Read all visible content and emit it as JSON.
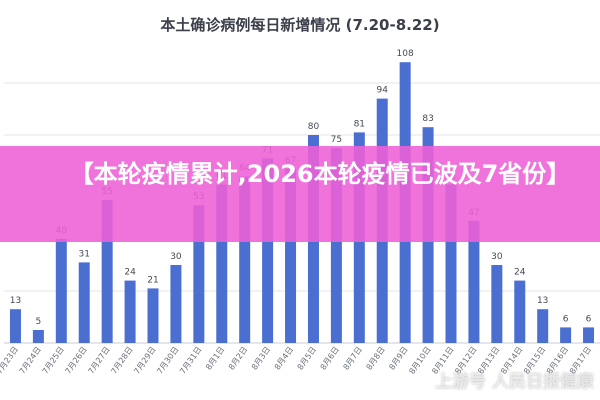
{
  "chart_data": {
    "type": "bar",
    "title": "本土确诊病例每日新增情况 (7.20-8.22)",
    "xlabel": "",
    "ylabel": "",
    "ylim": [
      0,
      115
    ],
    "grid": true,
    "bar_color": "#4a6fd1",
    "categories": [
      "7月23日",
      "7月24日",
      "7月25日",
      "7月26日",
      "7月27日",
      "7月28日",
      "7月29日",
      "7月30日",
      "7月31日",
      "8月1日",
      "8月2日",
      "8月3日",
      "8月4日",
      "8月5日",
      "8月6日",
      "8月7日",
      "8月8日",
      "8月9日",
      "8月10日",
      "8月11日",
      "8月12日",
      "8月13日",
      "8月14日",
      "8月15日",
      "8月16日",
      "8月17日"
    ],
    "values": [
      13,
      5,
      40,
      31,
      55,
      24,
      21,
      30,
      53,
      61,
      64,
      71,
      67,
      80,
      75,
      81,
      94,
      108,
      83,
      61,
      47,
      30,
      24,
      13,
      6,
      6
    ]
  },
  "banner": {
    "text": "【本轮疫情累计,2026本轮疫情已波及7省份】",
    "color": "#ee60d6"
  },
  "watermark": {
    "text": "上游号 人民日报健康"
  }
}
